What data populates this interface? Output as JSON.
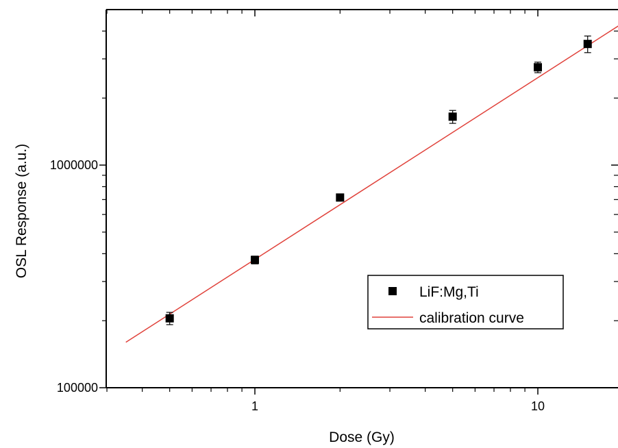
{
  "chart_data": {
    "type": "scatter",
    "xlabel": "Dose (Gy)",
    "ylabel": "OSL Response (a.u.)",
    "x_scale": "log",
    "y_scale": "log",
    "xlim": [
      0.3,
      20
    ],
    "ylim": [
      100000,
      4500000
    ],
    "x_tick_labels": [
      "1",
      "10"
    ],
    "y_tick_labels": [
      "100000",
      "1000000"
    ],
    "grid": false,
    "legend_position": "bottom-right",
    "series": [
      {
        "name": "LiF:Mg,Ti",
        "type": "scatter",
        "marker": "square",
        "color": "#000000",
        "points": [
          {
            "x": 0.5,
            "y": 205000,
            "err": 13000
          },
          {
            "x": 1,
            "y": 375000,
            "err": 15000
          },
          {
            "x": 2,
            "y": 715000,
            "err": 18000
          },
          {
            "x": 5,
            "y": 1650000,
            "err": 110000
          },
          {
            "x": 10,
            "y": 2750000,
            "err": 150000
          },
          {
            "x": 15,
            "y": 3500000,
            "err": 300000
          }
        ]
      },
      {
        "name": "calibration curve",
        "type": "line",
        "color": "#e0413a",
        "points": [
          {
            "x": 0.35,
            "y": 160000
          },
          {
            "x": 20,
            "y": 4350000
          }
        ]
      }
    ]
  }
}
